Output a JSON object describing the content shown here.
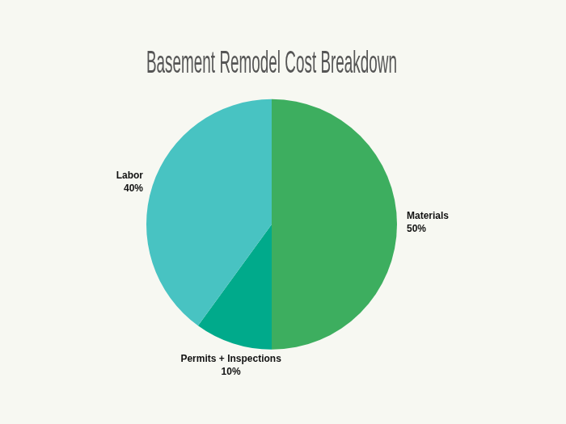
{
  "chart_data": {
    "type": "pie",
    "title": "Basement Remodel Cost Breakdown",
    "categories": [
      "Materials",
      "Permits + Inspections",
      "Labor"
    ],
    "values": [
      50,
      10,
      40
    ],
    "value_labels": [
      "50%",
      "10%",
      "40%"
    ],
    "colors": [
      "#3dae5f",
      "#00aa8b",
      "#48c3c2"
    ],
    "data_labels": true
  }
}
